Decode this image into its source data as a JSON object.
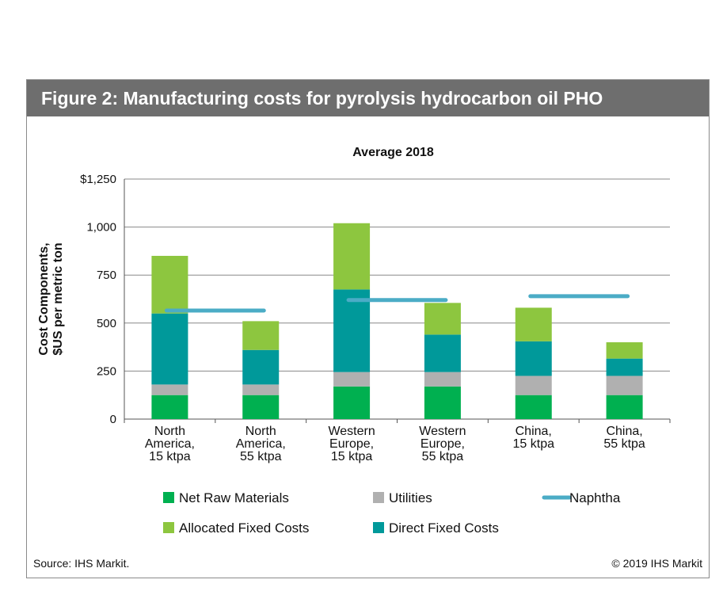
{
  "figure": {
    "title": "Figure 2: Manufacturing costs for pyrolysis hydrocarbon oil PHO",
    "source": "Source: IHS Markit.",
    "copyright": "© 2019 IHS Markit"
  },
  "colors": {
    "header_bg": "#6e6e6e",
    "net_raw_materials": "#00b050",
    "utilities": "#b0b0b0",
    "direct_fixed_costs": "#00999a",
    "allocated_fixed_costs": "#8dc63f",
    "naphtha": "#4bacc6",
    "gridline": "#888888"
  },
  "chart_data": {
    "type": "bar",
    "stacked": true,
    "title": "Average 2018",
    "ylabel_lines": [
      "Cost Components,",
      "$US per metric ton"
    ],
    "ylim": [
      0,
      1250
    ],
    "yticks": [
      0,
      250,
      500,
      750,
      1000,
      1250
    ],
    "ytick_labels": [
      "0",
      "250",
      "500",
      "750",
      "1,000",
      "$1,250"
    ],
    "grid": true,
    "categories": [
      [
        "North",
        "America,",
        "15 ktpa"
      ],
      [
        "North",
        "America,",
        "55 ktpa"
      ],
      [
        "Western",
        "Europe,",
        "15 ktpa"
      ],
      [
        "Western",
        "Europe,",
        "55 ktpa"
      ],
      [
        "China,",
        "15 ktpa"
      ],
      [
        "China,",
        "55 ktpa"
      ]
    ],
    "series": [
      {
        "name": "Net Raw Materials",
        "color_key": "net_raw_materials",
        "values": [
          125,
          125,
          170,
          170,
          125,
          125
        ]
      },
      {
        "name": "Utilities",
        "color_key": "utilities",
        "values": [
          55,
          55,
          75,
          75,
          100,
          100
        ]
      },
      {
        "name": "Direct Fixed Costs",
        "color_key": "direct_fixed_costs",
        "values": [
          370,
          180,
          430,
          195,
          180,
          90
        ]
      },
      {
        "name": "Allocated Fixed Costs",
        "color_key": "allocated_fixed_costs",
        "values": [
          300,
          150,
          345,
          165,
          175,
          85
        ]
      }
    ],
    "naphtha": {
      "name": "Naphtha",
      "color_key": "naphtha",
      "segments": [
        {
          "from_category": 0,
          "to_category": 1,
          "value": 565
        },
        {
          "from_category": 2,
          "to_category": 3,
          "value": 620
        },
        {
          "from_category": 4,
          "to_category": 5,
          "value": 640
        }
      ]
    },
    "legend": [
      {
        "name": "Net Raw Materials",
        "marker": "square",
        "color_key": "net_raw_materials"
      },
      {
        "name": "Utilities",
        "marker": "square",
        "color_key": "utilities"
      },
      {
        "name": "Naphtha",
        "marker": "line",
        "color_key": "naphtha"
      },
      {
        "name": "Allocated Fixed Costs",
        "marker": "square",
        "color_key": "allocated_fixed_costs"
      },
      {
        "name": "Direct Fixed Costs",
        "marker": "square",
        "color_key": "direct_fixed_costs"
      }
    ],
    "legend_position": "bottom"
  }
}
